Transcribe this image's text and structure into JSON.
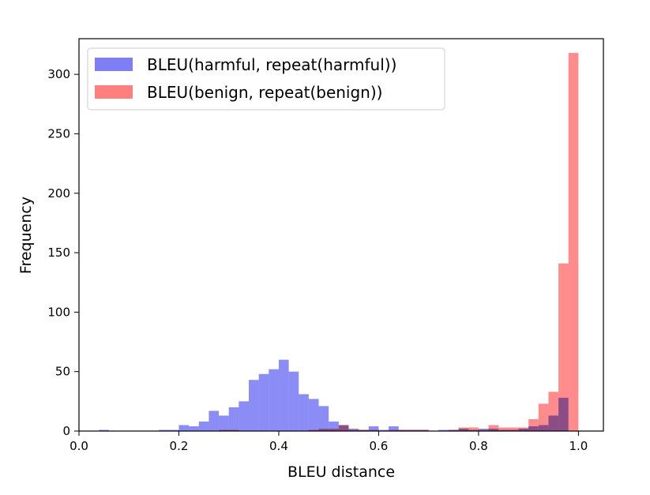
{
  "chart_data": {
    "type": "histogram",
    "xlabel": "BLEU distance",
    "ylabel": "Frequency",
    "xlim": [
      0.0,
      1.05
    ],
    "ylim": [
      0,
      330
    ],
    "xticks": [
      "0.0",
      "0.2",
      "0.4",
      "0.6",
      "0.8",
      "1.0"
    ],
    "yticks": [
      "0",
      "50",
      "100",
      "150",
      "200",
      "250",
      "300"
    ],
    "grid": false,
    "legend_position": "top-left",
    "bin_width": 0.02,
    "series": [
      {
        "name": "BLEU(harmful, repeat(harmful))",
        "color": "#7f7ff5",
        "bins": [
          [
            0.04,
            1
          ],
          [
            0.06,
            0
          ],
          [
            0.08,
            0
          ],
          [
            0.1,
            0
          ],
          [
            0.12,
            0
          ],
          [
            0.14,
            0
          ],
          [
            0.16,
            1
          ],
          [
            0.18,
            1
          ],
          [
            0.2,
            5
          ],
          [
            0.22,
            4
          ],
          [
            0.24,
            8
          ],
          [
            0.26,
            17
          ],
          [
            0.28,
            13
          ],
          [
            0.3,
            20
          ],
          [
            0.32,
            25
          ],
          [
            0.34,
            43
          ],
          [
            0.36,
            48
          ],
          [
            0.38,
            52
          ],
          [
            0.4,
            60
          ],
          [
            0.42,
            50
          ],
          [
            0.44,
            31
          ],
          [
            0.46,
            27
          ],
          [
            0.48,
            21
          ],
          [
            0.5,
            8
          ],
          [
            0.52,
            5
          ],
          [
            0.54,
            2
          ],
          [
            0.56,
            1
          ],
          [
            0.58,
            4
          ],
          [
            0.6,
            1
          ],
          [
            0.62,
            4
          ],
          [
            0.64,
            1
          ],
          [
            0.66,
            1
          ],
          [
            0.68,
            1
          ],
          [
            0.7,
            0
          ],
          [
            0.72,
            1
          ],
          [
            0.74,
            1
          ],
          [
            0.76,
            2
          ],
          [
            0.78,
            1
          ],
          [
            0.8,
            2
          ],
          [
            0.82,
            2
          ],
          [
            0.84,
            1
          ],
          [
            0.86,
            1
          ],
          [
            0.88,
            2
          ],
          [
            0.9,
            4
          ],
          [
            0.92,
            5
          ],
          [
            0.94,
            13
          ],
          [
            0.96,
            28
          ]
        ]
      },
      {
        "name": "BLEU(benign, repeat(benign))",
        "color": "#ff7f7f",
        "bins": [
          [
            0.28,
            1
          ],
          [
            0.3,
            1
          ],
          [
            0.32,
            0
          ],
          [
            0.34,
            0
          ],
          [
            0.36,
            0
          ],
          [
            0.38,
            0
          ],
          [
            0.4,
            0
          ],
          [
            0.42,
            0
          ],
          [
            0.44,
            0
          ],
          [
            0.46,
            1
          ],
          [
            0.48,
            2
          ],
          [
            0.5,
            2
          ],
          [
            0.52,
            5
          ],
          [
            0.54,
            1
          ],
          [
            0.56,
            1
          ],
          [
            0.58,
            1
          ],
          [
            0.6,
            0
          ],
          [
            0.62,
            1
          ],
          [
            0.64,
            1
          ],
          [
            0.66,
            1
          ],
          [
            0.68,
            1
          ],
          [
            0.7,
            0
          ],
          [
            0.72,
            0
          ],
          [
            0.74,
            1
          ],
          [
            0.76,
            3
          ],
          [
            0.78,
            3
          ],
          [
            0.8,
            1
          ],
          [
            0.82,
            5
          ],
          [
            0.84,
            3
          ],
          [
            0.86,
            3
          ],
          [
            0.88,
            3
          ],
          [
            0.9,
            10
          ],
          [
            0.92,
            23
          ],
          [
            0.94,
            33
          ],
          [
            0.96,
            141
          ],
          [
            0.98,
            318
          ]
        ]
      }
    ]
  }
}
